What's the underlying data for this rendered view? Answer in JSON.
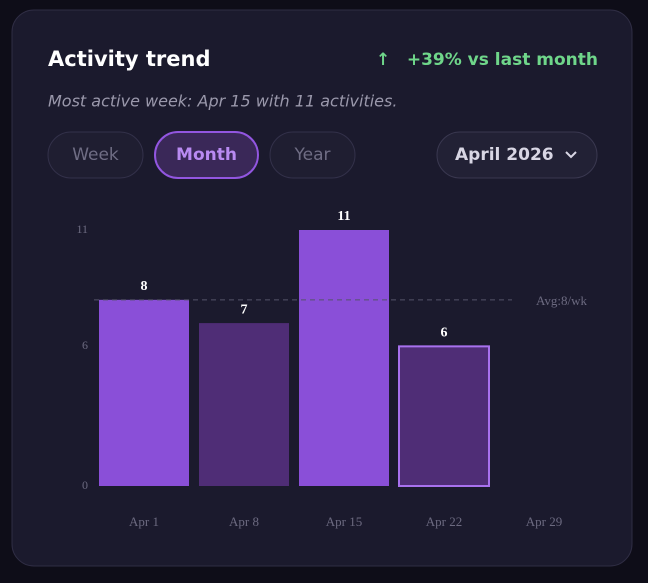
{
  "header": {
    "title": "Activity trend",
    "change_icon": "↑",
    "change": "+39% vs last month"
  },
  "subtitle": "Most active week: Apr 15 with 11 activities.",
  "tabs": [
    "Week",
    "Month",
    "Year"
  ],
  "active_tab": "Month",
  "dropdown": "April 2026",
  "chart_data": {
    "type": "bar",
    "categories": [
      "Apr 1",
      "Apr 8",
      "Apr 15",
      "Apr 22",
      "Apr 29"
    ],
    "values": [
      8,
      7,
      11,
      6,
      null
    ],
    "colors": [
      "#8a4fd8",
      "#4f2d76",
      "#8a4fd8",
      "#4f2d76",
      null
    ],
    "borders": [
      null,
      null,
      null,
      "#a871ee",
      null
    ],
    "ylim": [
      0,
      11
    ],
    "yticks": [
      0,
      6,
      11
    ],
    "grid": false,
    "average": {
      "value": 8,
      "label": "Avg:8/wk"
    }
  }
}
